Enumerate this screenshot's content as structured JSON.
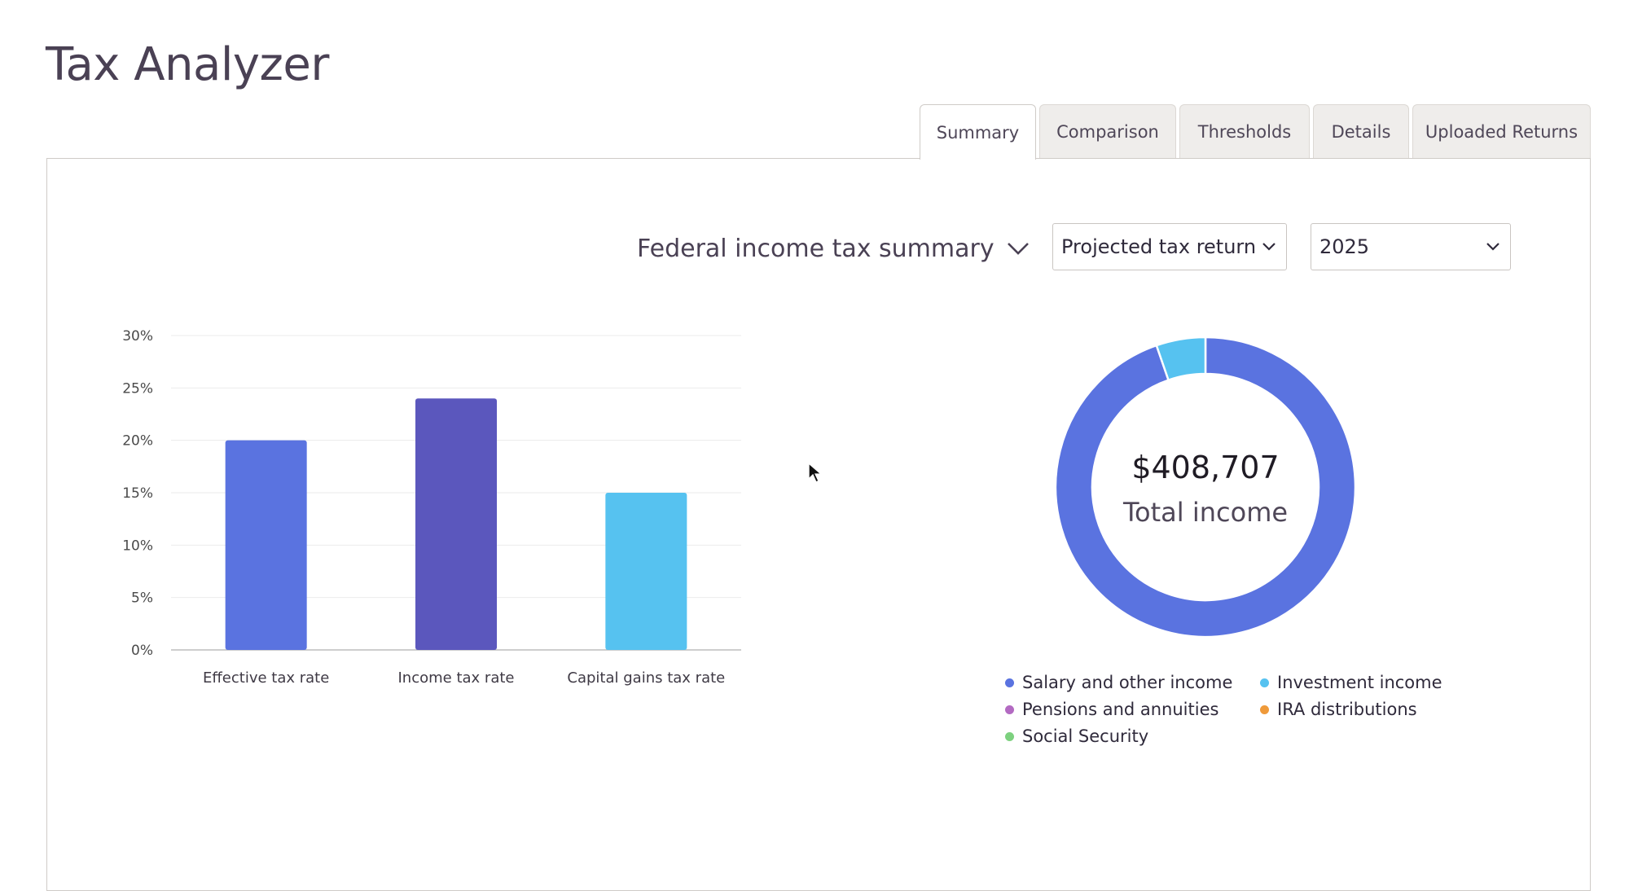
{
  "app": {
    "title": "Tax Analyzer"
  },
  "tabs": [
    {
      "label": "Summary",
      "active": true
    },
    {
      "label": "Comparison",
      "active": false
    },
    {
      "label": "Thresholds",
      "active": false
    },
    {
      "label": "Details",
      "active": false
    },
    {
      "label": "Uploaded Returns",
      "active": false
    }
  ],
  "controls": {
    "summary_selector": "Federal income tax summary",
    "return_type": "Projected tax return",
    "year": "2025"
  },
  "colors": {
    "effective": "#5a73e0",
    "income": "#5b57bd",
    "capital_gains": "#56c2f0",
    "salary": "#5a73e0",
    "investment": "#56c2f0",
    "pensions": "#b36ac2",
    "ira": "#ef9a3a",
    "social_security": "#7dd17f"
  },
  "chart_data": [
    {
      "type": "bar",
      "categories": [
        "Effective tax rate",
        "Income tax rate",
        "Capital gains tax rate"
      ],
      "values": [
        20,
        24,
        15
      ],
      "y_ticks": [
        "0%",
        "5%",
        "10%",
        "15%",
        "20%",
        "25%",
        "30%"
      ],
      "ylim": [
        0,
        30
      ],
      "unit": "%",
      "grid": true
    },
    {
      "type": "pie",
      "donut": true,
      "center_value": "$408,707",
      "center_label": "Total income",
      "slices": [
        {
          "label": "Salary and other income",
          "share": 0.947,
          "color": "#5a73e0"
        },
        {
          "label": "Investment income",
          "share": 0.053,
          "color": "#56c2f0"
        },
        {
          "label": "Pensions and annuities",
          "share": 0,
          "color": "#b36ac2"
        },
        {
          "label": "IRA distributions",
          "share": 0,
          "color": "#ef9a3a"
        },
        {
          "label": "Social Security",
          "share": 0,
          "color": "#7dd17f"
        }
      ],
      "legend": [
        "Salary and other income",
        "Investment income",
        "Pensions and annuities",
        "IRA distributions",
        "Social Security"
      ]
    }
  ]
}
